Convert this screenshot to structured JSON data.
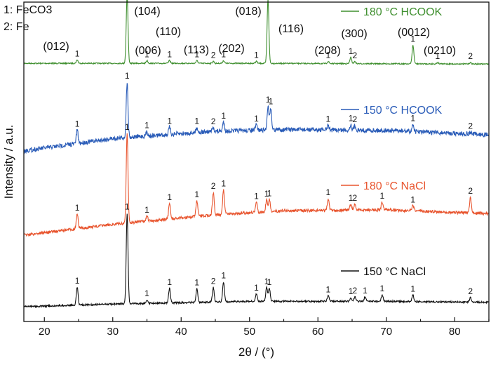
{
  "chart_data": {
    "type": "line",
    "title": "",
    "xlabel": "2θ / (°)",
    "ylabel": "Intensity / a.u.",
    "xlim": [
      17,
      85
    ],
    "x_ticks": [
      20,
      30,
      40,
      50,
      60,
      70,
      80
    ],
    "y_ticks_shown": false,
    "grid": false,
    "legend_position": "right, one entry above each trace",
    "phase_key": [
      "1: FeCO3",
      "2: Fe"
    ],
    "hkl_annotations": [
      {
        "text": "(012)",
        "x": 24.8
      },
      {
        "text": "(104)",
        "x": 32.1
      },
      {
        "text": "(006)",
        "x": 35.0
      },
      {
        "text": "(110)",
        "x": 38.3
      },
      {
        "text": "(113)",
        "x": 42.3
      },
      {
        "text": "(202)",
        "x": 46.2
      },
      {
        "text": "(018)",
        "x": 52.5
      },
      {
        "text": "(116)",
        "x": 52.8
      },
      {
        "text": "(208)",
        "x": 61.4
      },
      {
        "text": "(300)",
        "x": 65.2
      },
      {
        "text": "(0012)",
        "x": 73.8
      },
      {
        "text": "(0210)",
        "x": 77.5
      }
    ],
    "series": [
      {
        "name": "180 °C HCOOK",
        "color": "#3f8f2f",
        "stack_order": 4,
        "baseline": [
          [
            17,
            0.08
          ],
          [
            50,
            0.08
          ],
          [
            85,
            0.07
          ]
        ],
        "peaks": [
          {
            "x": 24.8,
            "h": 0.05,
            "label": "1"
          },
          {
            "x": 32.1,
            "h": 1.0,
            "label": "1"
          },
          {
            "x": 35.0,
            "h": 0.04,
            "label": "1"
          },
          {
            "x": 38.3,
            "h": 0.04,
            "label": "1"
          },
          {
            "x": 42.3,
            "h": 0.04,
            "label": "1"
          },
          {
            "x": 44.7,
            "h": 0.03,
            "label": "2"
          },
          {
            "x": 46.2,
            "h": 0.04,
            "label": "1"
          },
          {
            "x": 51.0,
            "h": 0.03,
            "label": "1"
          },
          {
            "x": 52.7,
            "h": 0.94,
            "label": "1"
          },
          {
            "x": 61.5,
            "h": 0.03,
            "label": "1"
          },
          {
            "x": 64.8,
            "h": 0.09,
            "label": "1"
          },
          {
            "x": 65.4,
            "h": 0.03,
            "label": "2"
          },
          {
            "x": 73.9,
            "h": 0.27,
            "label": "1"
          },
          {
            "x": 77.5,
            "h": 0.02,
            "label": "1"
          },
          {
            "x": 82.3,
            "h": 0.02,
            "label": "2"
          }
        ]
      },
      {
        "name": "150 °C HCOOK",
        "color": "#2a5cb8",
        "stack_order": 3,
        "baseline": [
          [
            17,
            0.0
          ],
          [
            30,
            0.14
          ],
          [
            45,
            0.22
          ],
          [
            55,
            0.24
          ],
          [
            70,
            0.23
          ],
          [
            85,
            0.18
          ]
        ],
        "peaks": [
          {
            "x": 24.8,
            "h": 0.15,
            "label": "1"
          },
          {
            "x": 32.1,
            "h": 0.62,
            "label": "1"
          },
          {
            "x": 35.0,
            "h": 0.05,
            "label": "1"
          },
          {
            "x": 38.3,
            "h": 0.08,
            "label": "1"
          },
          {
            "x": 42.3,
            "h": 0.06,
            "label": "1"
          },
          {
            "x": 44.7,
            "h": 0.04,
            "label": "2"
          },
          {
            "x": 46.2,
            "h": 0.1,
            "label": "1"
          },
          {
            "x": 51.0,
            "h": 0.06,
            "label": "1"
          },
          {
            "x": 52.7,
            "h": 0.27,
            "label": "1"
          },
          {
            "x": 53.1,
            "h": 0.25,
            "label": "1"
          },
          {
            "x": 61.5,
            "h": 0.05,
            "label": "1"
          },
          {
            "x": 64.8,
            "h": 0.06,
            "label": "1"
          },
          {
            "x": 65.4,
            "h": 0.05,
            "label": "2"
          },
          {
            "x": 73.9,
            "h": 0.08,
            "label": "1"
          },
          {
            "x": 82.3,
            "h": 0.02,
            "label": "2"
          }
        ]
      },
      {
        "name": "180 °C NaCl",
        "color": "#e8552f",
        "stack_order": 2,
        "baseline": [
          [
            17,
            0.0
          ],
          [
            30,
            0.11
          ],
          [
            45,
            0.21
          ],
          [
            55,
            0.25
          ],
          [
            70,
            0.26
          ],
          [
            85,
            0.22
          ]
        ],
        "peaks": [
          {
            "x": 24.8,
            "h": 0.15,
            "label": "1"
          },
          {
            "x": 32.1,
            "h": 0.92,
            "label": "1"
          },
          {
            "x": 35.0,
            "h": 0.05,
            "label": "1"
          },
          {
            "x": 38.3,
            "h": 0.16,
            "label": "1"
          },
          {
            "x": 42.3,
            "h": 0.16,
            "label": "1"
          },
          {
            "x": 44.7,
            "h": 0.23,
            "label": "2"
          },
          {
            "x": 46.2,
            "h": 0.25,
            "label": "1"
          },
          {
            "x": 51.0,
            "h": 0.1,
            "label": "1"
          },
          {
            "x": 52.5,
            "h": 0.12,
            "label": "1"
          },
          {
            "x": 52.9,
            "h": 0.12,
            "label": "1"
          },
          {
            "x": 61.5,
            "h": 0.12,
            "label": "1"
          },
          {
            "x": 64.8,
            "h": 0.06,
            "label": "1"
          },
          {
            "x": 65.4,
            "h": 0.06,
            "label": "2"
          },
          {
            "x": 69.4,
            "h": 0.08,
            "label": "1"
          },
          {
            "x": 73.9,
            "h": 0.05,
            "label": "1"
          },
          {
            "x": 82.3,
            "h": 0.16,
            "label": "2"
          }
        ]
      },
      {
        "name": "150 °C NaCl",
        "color": "#111111",
        "stack_order": 1,
        "baseline": [
          [
            17,
            0.0
          ],
          [
            30,
            0.03
          ],
          [
            50,
            0.06
          ],
          [
            70,
            0.06
          ],
          [
            85,
            0.05
          ]
        ],
        "peaks": [
          {
            "x": 24.8,
            "h": 0.2,
            "label": "1"
          },
          {
            "x": 32.1,
            "h": 1.0,
            "label": "1"
          },
          {
            "x": 35.0,
            "h": 0.04,
            "label": "1"
          },
          {
            "x": 38.3,
            "h": 0.16,
            "label": "1"
          },
          {
            "x": 42.3,
            "h": 0.15,
            "label": "1"
          },
          {
            "x": 44.7,
            "h": 0.16,
            "label": "2"
          },
          {
            "x": 46.2,
            "h": 0.22,
            "label": "1"
          },
          {
            "x": 51.0,
            "h": 0.08,
            "label": "1"
          },
          {
            "x": 52.5,
            "h": 0.15,
            "label": "1"
          },
          {
            "x": 52.9,
            "h": 0.14,
            "label": "1"
          },
          {
            "x": 61.5,
            "h": 0.06,
            "label": "1"
          },
          {
            "x": 64.8,
            "h": 0.04,
            "label": "1"
          },
          {
            "x": 65.4,
            "h": 0.05,
            "label": "2"
          },
          {
            "x": 66.9,
            "h": 0.05,
            "label": "1"
          },
          {
            "x": 69.4,
            "h": 0.07,
            "label": "1"
          },
          {
            "x": 73.9,
            "h": 0.07,
            "label": "1"
          },
          {
            "x": 82.3,
            "h": 0.05,
            "label": "2"
          }
        ]
      }
    ]
  }
}
